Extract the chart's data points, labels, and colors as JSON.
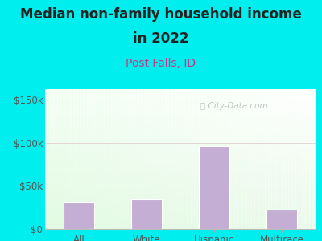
{
  "title_line1": "Median non-family household income",
  "title_line2": "in 2022",
  "subtitle": "Post Falls, ID",
  "categories": [
    "All",
    "White",
    "Hispanic",
    "Multirace"
  ],
  "values": [
    31000,
    34000,
    96000,
    22000
  ],
  "bar_color": "#c4aed4",
  "bar_edge_color": "#ffffff",
  "background_outer": "#00eeee",
  "title_color": "#222222",
  "subtitle_color": "#cc3388",
  "ylabel_ticks": [
    "$0",
    "$50k",
    "$100k",
    "$150k"
  ],
  "ytick_values": [
    0,
    50000,
    100000,
    150000
  ],
  "ylim": [
    0,
    162000
  ],
  "watermark": "City-Data.com",
  "tick_color": "#555555",
  "title_fontsize": 12,
  "subtitle_fontsize": 10,
  "tick_fontsize": 8.5
}
